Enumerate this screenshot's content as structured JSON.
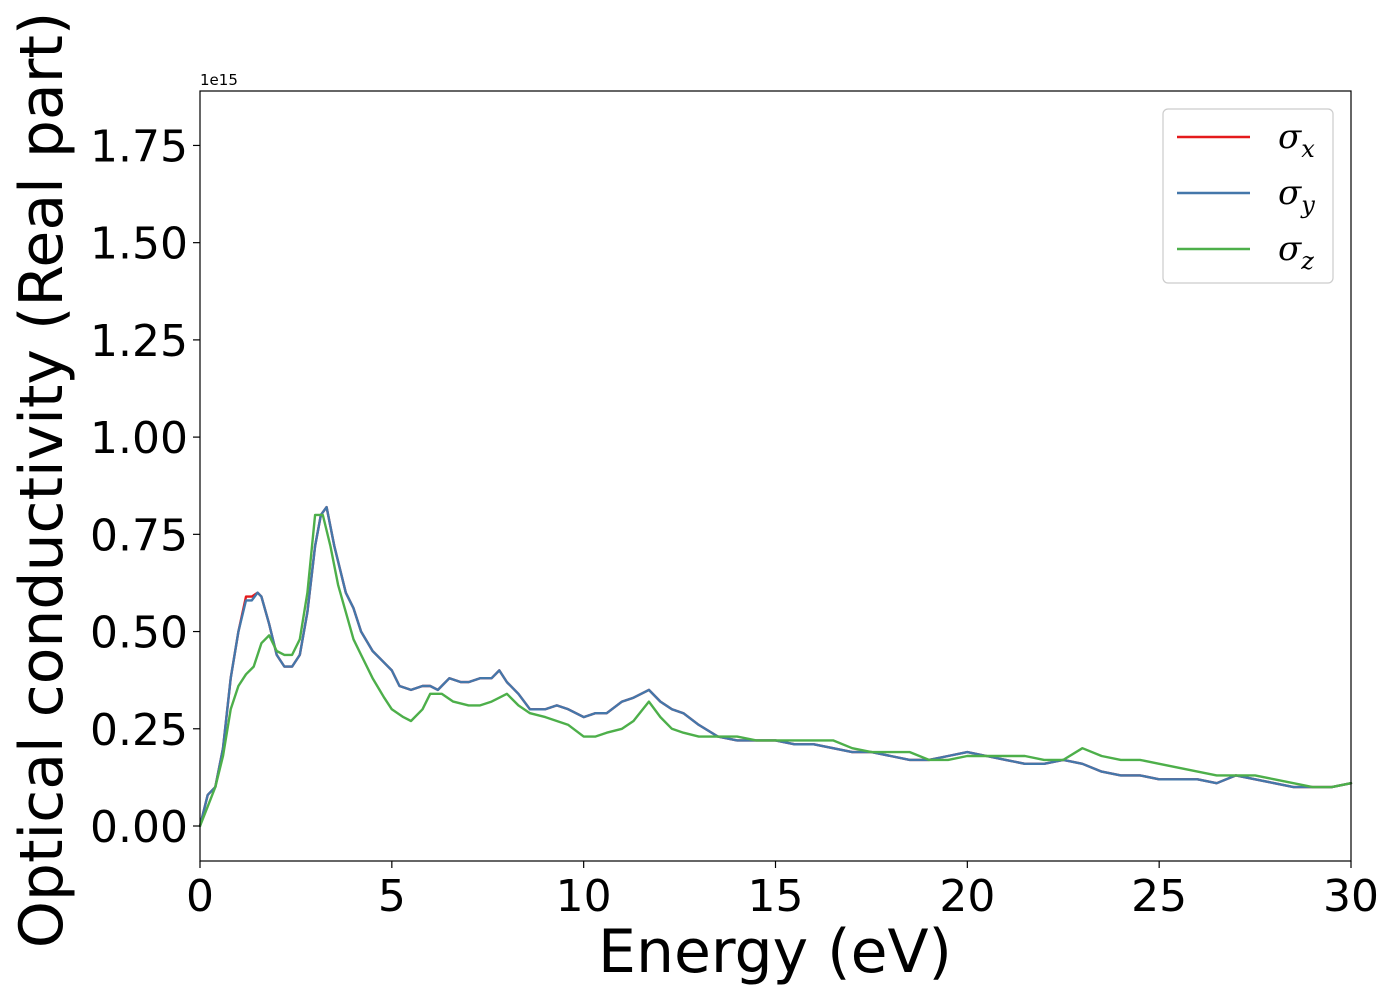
{
  "chart_data": {
    "type": "line",
    "title": "",
    "xlabel": "Energy (eV)",
    "ylabel": "Optical conductivity (Real part)",
    "y_offset_label": "1e15",
    "xlim": [
      0,
      30
    ],
    "ylim": [
      -0.09,
      1.89
    ],
    "xticks": [
      0,
      5,
      10,
      15,
      20,
      25,
      30
    ],
    "xtick_labels": [
      "0",
      "5",
      "10",
      "15",
      "20",
      "25",
      "30"
    ],
    "yticks": [
      0.0,
      0.25,
      0.5,
      0.75,
      1.0,
      1.25,
      1.5,
      1.75
    ],
    "ytick_labels": [
      "0.00",
      "0.25",
      "0.50",
      "0.75",
      "1.00",
      "1.25",
      "1.50",
      "1.75"
    ],
    "grid": false,
    "legend_position": "top-right",
    "series": [
      {
        "name": "σx",
        "label_base": "σ",
        "label_sub": "x",
        "color": "#e41a1c",
        "x": [
          0,
          0.2,
          0.4,
          0.6,
          0.8,
          1.0,
          1.2,
          1.35,
          1.5,
          1.6,
          1.8,
          2.0,
          2.2,
          2.4,
          2.6,
          2.8,
          3.0,
          3.15,
          3.3,
          3.5,
          3.8,
          4.0,
          4.2,
          4.5,
          4.8,
          5.0,
          5.2,
          5.5,
          5.8,
          6.0,
          6.2,
          6.5,
          6.8,
          7.0,
          7.3,
          7.6,
          7.8,
          8.0,
          8.3,
          8.6,
          9.0,
          9.3,
          9.6,
          10.0,
          10.3,
          10.6,
          11.0,
          11.3,
          11.7,
          12.0,
          12.3,
          12.6,
          13.0,
          13.5,
          14.0,
          14.5,
          15.0,
          15.5,
          16.0,
          16.5,
          17.0,
          17.5,
          18.0,
          18.5,
          19.0,
          19.5,
          20.0,
          20.5,
          21.0,
          21.5,
          22.0,
          22.5,
          23.0,
          23.5,
          24.0,
          24.5,
          25.0,
          25.5,
          26.0,
          26.5,
          27.0,
          27.5,
          28.0,
          28.5,
          29.0,
          29.5,
          30.0
        ],
        "y": [
          0.0,
          0.08,
          0.1,
          0.2,
          0.38,
          0.5,
          0.59,
          0.59,
          0.6,
          0.59,
          0.52,
          0.44,
          0.41,
          0.41,
          0.44,
          0.55,
          0.72,
          0.8,
          0.82,
          0.72,
          0.6,
          0.56,
          0.5,
          0.45,
          0.42,
          0.4,
          0.36,
          0.35,
          0.36,
          0.36,
          0.35,
          0.38,
          0.37,
          0.37,
          0.38,
          0.38,
          0.4,
          0.37,
          0.34,
          0.3,
          0.3,
          0.31,
          0.3,
          0.28,
          0.29,
          0.29,
          0.32,
          0.33,
          0.35,
          0.32,
          0.3,
          0.29,
          0.26,
          0.23,
          0.22,
          0.22,
          0.22,
          0.21,
          0.21,
          0.2,
          0.19,
          0.19,
          0.18,
          0.17,
          0.17,
          0.18,
          0.19,
          0.18,
          0.17,
          0.16,
          0.16,
          0.17,
          0.16,
          0.14,
          0.13,
          0.13,
          0.12,
          0.12,
          0.12,
          0.11,
          0.13,
          0.12,
          0.11,
          0.1,
          0.1,
          0.1,
          0.11
        ]
      },
      {
        "name": "σy",
        "label_base": "σ",
        "label_sub": "y",
        "color": "#4477aa",
        "x": [
          0,
          0.2,
          0.4,
          0.6,
          0.8,
          1.0,
          1.2,
          1.35,
          1.5,
          1.6,
          1.8,
          2.0,
          2.2,
          2.4,
          2.6,
          2.8,
          3.0,
          3.15,
          3.3,
          3.5,
          3.8,
          4.0,
          4.2,
          4.5,
          4.8,
          5.0,
          5.2,
          5.5,
          5.8,
          6.0,
          6.2,
          6.5,
          6.8,
          7.0,
          7.3,
          7.6,
          7.8,
          8.0,
          8.3,
          8.6,
          9.0,
          9.3,
          9.6,
          10.0,
          10.3,
          10.6,
          11.0,
          11.3,
          11.7,
          12.0,
          12.3,
          12.6,
          13.0,
          13.5,
          14.0,
          14.5,
          15.0,
          15.5,
          16.0,
          16.5,
          17.0,
          17.5,
          18.0,
          18.5,
          19.0,
          19.5,
          20.0,
          20.5,
          21.0,
          21.5,
          22.0,
          22.5,
          23.0,
          23.5,
          24.0,
          24.5,
          25.0,
          25.5,
          26.0,
          26.5,
          27.0,
          27.5,
          28.0,
          28.5,
          29.0,
          29.5,
          30.0
        ],
        "y": [
          0.0,
          0.08,
          0.1,
          0.2,
          0.38,
          0.5,
          0.58,
          0.58,
          0.6,
          0.59,
          0.52,
          0.44,
          0.41,
          0.41,
          0.44,
          0.55,
          0.72,
          0.8,
          0.82,
          0.72,
          0.6,
          0.56,
          0.5,
          0.45,
          0.42,
          0.4,
          0.36,
          0.35,
          0.36,
          0.36,
          0.35,
          0.38,
          0.37,
          0.37,
          0.38,
          0.38,
          0.4,
          0.37,
          0.34,
          0.3,
          0.3,
          0.31,
          0.3,
          0.28,
          0.29,
          0.29,
          0.32,
          0.33,
          0.35,
          0.32,
          0.3,
          0.29,
          0.26,
          0.23,
          0.22,
          0.22,
          0.22,
          0.21,
          0.21,
          0.2,
          0.19,
          0.19,
          0.18,
          0.17,
          0.17,
          0.18,
          0.19,
          0.18,
          0.17,
          0.16,
          0.16,
          0.17,
          0.16,
          0.14,
          0.13,
          0.13,
          0.12,
          0.12,
          0.12,
          0.11,
          0.13,
          0.12,
          0.11,
          0.1,
          0.1,
          0.1,
          0.11
        ]
      },
      {
        "name": "σz",
        "label_base": "σ",
        "label_sub": "z",
        "color": "#4daf4a",
        "x": [
          0,
          0.2,
          0.4,
          0.6,
          0.8,
          1.0,
          1.2,
          1.4,
          1.6,
          1.8,
          2.0,
          2.2,
          2.4,
          2.6,
          2.8,
          3.0,
          3.2,
          3.4,
          3.6,
          3.8,
          4.0,
          4.2,
          4.5,
          4.8,
          5.0,
          5.3,
          5.5,
          5.8,
          6.0,
          6.3,
          6.6,
          7.0,
          7.3,
          7.6,
          7.8,
          8.0,
          8.3,
          8.6,
          9.0,
          9.3,
          9.6,
          10.0,
          10.3,
          10.6,
          11.0,
          11.3,
          11.7,
          12.0,
          12.3,
          12.6,
          13.0,
          13.5,
          14.0,
          14.5,
          15.0,
          15.5,
          16.0,
          16.5,
          17.0,
          17.5,
          18.0,
          18.5,
          19.0,
          19.5,
          20.0,
          20.5,
          21.0,
          21.5,
          22.0,
          22.5,
          23.0,
          23.5,
          24.0,
          24.5,
          25.0,
          25.5,
          26.0,
          26.5,
          27.0,
          27.5,
          28.0,
          28.5,
          29.0,
          29.5,
          30.0
        ],
        "y": [
          0.0,
          0.05,
          0.1,
          0.18,
          0.3,
          0.36,
          0.39,
          0.41,
          0.47,
          0.49,
          0.45,
          0.44,
          0.44,
          0.48,
          0.6,
          0.8,
          0.8,
          0.72,
          0.62,
          0.55,
          0.48,
          0.44,
          0.38,
          0.33,
          0.3,
          0.28,
          0.27,
          0.3,
          0.34,
          0.34,
          0.32,
          0.31,
          0.31,
          0.32,
          0.33,
          0.34,
          0.31,
          0.29,
          0.28,
          0.27,
          0.26,
          0.23,
          0.23,
          0.24,
          0.25,
          0.27,
          0.32,
          0.28,
          0.25,
          0.24,
          0.23,
          0.23,
          0.23,
          0.22,
          0.22,
          0.22,
          0.22,
          0.22,
          0.2,
          0.19,
          0.19,
          0.19,
          0.17,
          0.17,
          0.18,
          0.18,
          0.18,
          0.18,
          0.17,
          0.17,
          0.2,
          0.18,
          0.17,
          0.17,
          0.16,
          0.15,
          0.14,
          0.13,
          0.13,
          0.13,
          0.12,
          0.11,
          0.1,
          0.1,
          0.11
        ]
      }
    ]
  }
}
